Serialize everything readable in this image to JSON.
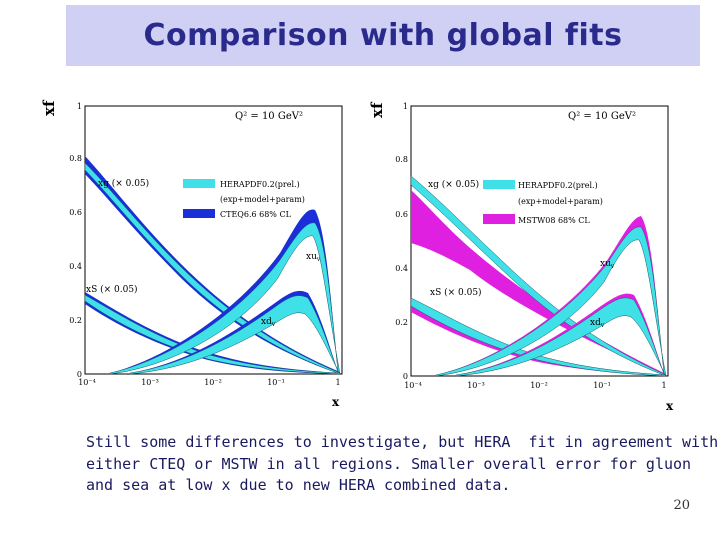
{
  "slide": {
    "title": "Comparison with global fits",
    "caption_lines": [
      "Still some differences to investigate, but HERA  fit in agreement with",
      "either CTEQ or MSTW in all regions. Smaller overall error for gluon",
      "and sea at low x due to new HERA combined data."
    ],
    "page_number": "20"
  },
  "plots": [
    {
      "ylabel": "xf",
      "xlabel": "x",
      "scale_label": "Q² = 10 GeV²",
      "y_ticks": [
        "0",
        "0.2",
        "0.4",
        "0.6",
        "0.8",
        "1"
      ],
      "x_ticks": [
        "10⁻⁴",
        "10⁻³",
        "10⁻²",
        "10⁻¹",
        "1"
      ],
      "legend": [
        "HERAPDF0.2(prel.)",
        "(exp+model+param)",
        "CTEQ6.6 68% CL"
      ],
      "curve_labels": {
        "xg": "xg (× 0.05)",
        "xuv": "xu",
        "xuv_sub": "v",
        "xdv": "xd",
        "xdv_sub": "v",
        "xs": "xS (× 0.05)"
      },
      "compare_color": "#1a2fd8"
    },
    {
      "ylabel": "xf",
      "xlabel": "x",
      "scale_label": "Q² = 10 GeV²",
      "y_ticks": [
        "0",
        "0.2",
        "0.4",
        "0.6",
        "0.8",
        "1"
      ],
      "x_ticks": [
        "10⁻⁴",
        "10⁻³",
        "10⁻²",
        "10⁻¹",
        "1"
      ],
      "legend": [
        "HERAPDF0.2(prel.)",
        "(exp+model+param)",
        "MSTW08 68% CL"
      ],
      "curve_labels": {
        "xg": "xg (× 0.05)",
        "xuv": "xu",
        "xuv_sub": "v",
        "xdv": "xd",
        "xdv_sub": "v",
        "xs": "xS (× 0.05)"
      },
      "compare_color": "#e020e0"
    }
  ],
  "colors": {
    "title_bg": "#cfd0f4",
    "title_text": "#2a2a8c",
    "hera_band": "#3fe0e8",
    "caption_text": "#1a1a60"
  }
}
